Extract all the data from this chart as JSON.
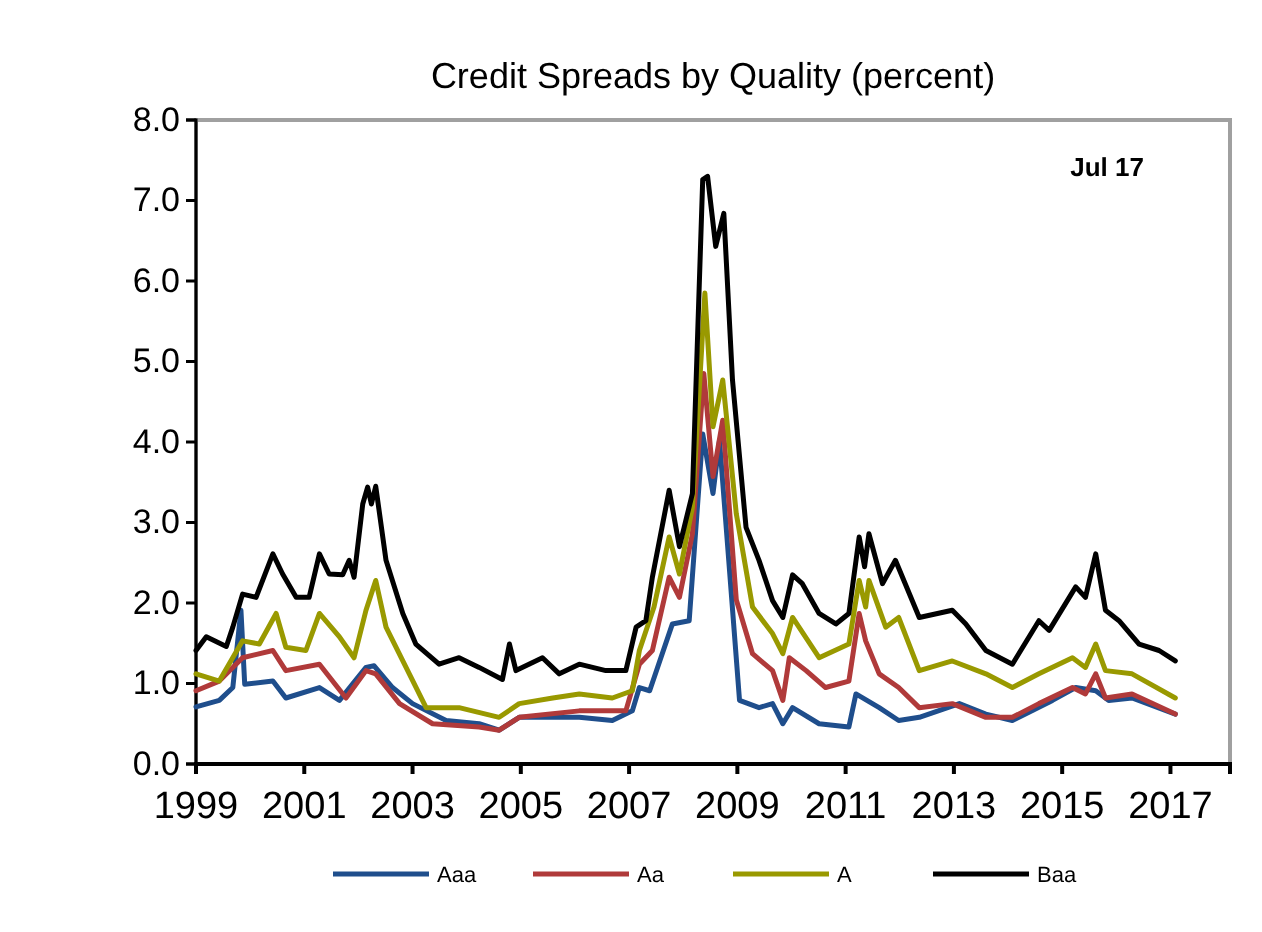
{
  "chart_data": {
    "type": "line",
    "title": "Credit Spreads by Quality (percent)",
    "annotations": [
      "Jul 17"
    ],
    "xlim": [
      1999,
      2018.1
    ],
    "xticks": [
      1999,
      2001,
      2003,
      2005,
      2007,
      2009,
      2011,
      2013,
      2015,
      2017
    ],
    "ylim": [
      0,
      8
    ],
    "yticks": [
      {
        "value": 0,
        "label": "0.0"
      },
      {
        "value": 1,
        "label": "1.0"
      },
      {
        "value": 2,
        "label": "2.0"
      },
      {
        "value": 3,
        "label": "3.0"
      },
      {
        "value": 4,
        "label": "4.0"
      },
      {
        "value": 5,
        "label": "5.0"
      },
      {
        "value": 6,
        "label": "6.0"
      },
      {
        "value": 7,
        "label": "7.0"
      },
      {
        "value": 8,
        "label": "8.0"
      }
    ],
    "grid": false,
    "legend": "bottom",
    "line_style": "solid",
    "marker": "none",
    "series": [
      {
        "name": "Aaa",
        "color": "#1f4e8c",
        "x": [
          1999.0,
          1999.43,
          1999.68,
          1999.83,
          1999.9,
          2000.42,
          2000.66,
          2001.28,
          2001.65,
          2002.14,
          2002.29,
          2002.63,
          2003.0,
          2003.62,
          2004.23,
          2004.6,
          2004.97,
          2005.59,
          2006.08,
          2006.69,
          2007.06,
          2007.19,
          2007.38,
          2007.8,
          2008.11,
          2008.36,
          2008.55,
          2008.67,
          2008.85,
          2009.04,
          2009.4,
          2009.65,
          2009.84,
          2010.02,
          2010.51,
          2011.06,
          2011.19,
          2011.62,
          2011.98,
          2012.36,
          2013.1,
          2013.59,
          2014.08,
          2014.82,
          2015.25,
          2015.62,
          2015.86,
          2016.29,
          2017.09
        ],
        "values": [
          0.71,
          0.79,
          0.95,
          1.91,
          0.99,
          1.03,
          0.82,
          0.95,
          0.79,
          1.2,
          1.22,
          0.95,
          0.75,
          0.54,
          0.5,
          0.42,
          0.58,
          0.58,
          0.58,
          0.54,
          0.66,
          0.95,
          0.91,
          1.74,
          1.78,
          4.1,
          3.36,
          4.02,
          2.45,
          0.79,
          0.7,
          0.75,
          0.5,
          0.7,
          0.5,
          0.46,
          0.87,
          0.7,
          0.54,
          0.58,
          0.75,
          0.62,
          0.54,
          0.79,
          0.95,
          0.91,
          0.79,
          0.82,
          0.62
        ]
      },
      {
        "name": "Aa",
        "color": "#b03a3a",
        "x": [
          1999.0,
          1999.43,
          1999.86,
          2000.42,
          2000.66,
          2001.28,
          2001.77,
          2002.14,
          2002.32,
          2002.76,
          2003.37,
          2004.23,
          2004.6,
          2004.97,
          2006.08,
          2006.94,
          2007.19,
          2007.43,
          2007.74,
          2007.93,
          2008.17,
          2008.38,
          2008.55,
          2008.73,
          2008.98,
          2009.28,
          2009.65,
          2009.84,
          2009.96,
          2010.27,
          2010.63,
          2011.06,
          2011.25,
          2011.37,
          2011.62,
          2011.98,
          2012.36,
          2012.97,
          2013.59,
          2014.08,
          2014.57,
          2015.19,
          2015.43,
          2015.62,
          2015.8,
          2016.29,
          2017.09
        ],
        "values": [
          0.91,
          1.03,
          1.32,
          1.41,
          1.16,
          1.24,
          0.82,
          1.16,
          1.12,
          0.75,
          0.5,
          0.46,
          0.42,
          0.58,
          0.66,
          0.66,
          1.24,
          1.41,
          2.32,
          2.07,
          2.86,
          4.85,
          3.57,
          4.27,
          2.04,
          1.37,
          1.16,
          0.79,
          1.32,
          1.16,
          0.95,
          1.03,
          1.87,
          1.53,
          1.12,
          0.95,
          0.7,
          0.75,
          0.58,
          0.58,
          0.75,
          0.95,
          0.87,
          1.12,
          0.82,
          0.87,
          0.62
        ]
      },
      {
        "name": "A",
        "color": "#999900",
        "x": [
          1999.0,
          1999.43,
          1999.86,
          2000.17,
          2000.48,
          2000.66,
          2001.03,
          2001.28,
          2001.65,
          2001.92,
          2002.14,
          2002.32,
          2002.51,
          2002.94,
          2003.25,
          2003.86,
          2004.6,
          2004.97,
          2005.59,
          2006.08,
          2006.69,
          2007.06,
          2007.19,
          2007.46,
          2007.74,
          2007.93,
          2008.17,
          2008.4,
          2008.55,
          2008.73,
          2008.98,
          2009.28,
          2009.65,
          2009.84,
          2010.02,
          2010.51,
          2011.06,
          2011.25,
          2011.37,
          2011.43,
          2011.74,
          2011.98,
          2012.36,
          2012.97,
          2013.59,
          2014.08,
          2014.57,
          2015.19,
          2015.43,
          2015.62,
          2015.8,
          2016.29,
          2017.09
        ],
        "values": [
          1.12,
          1.03,
          1.53,
          1.49,
          1.87,
          1.45,
          1.41,
          1.87,
          1.58,
          1.32,
          1.91,
          2.28,
          1.7,
          1.12,
          0.7,
          0.7,
          0.58,
          0.75,
          0.82,
          0.87,
          0.82,
          0.91,
          1.41,
          1.95,
          2.82,
          2.36,
          3.19,
          5.85,
          4.19,
          4.77,
          3.11,
          1.95,
          1.62,
          1.37,
          1.82,
          1.32,
          1.49,
          2.28,
          1.95,
          2.28,
          1.7,
          1.82,
          1.16,
          1.28,
          1.12,
          0.95,
          1.12,
          1.32,
          1.2,
          1.49,
          1.16,
          1.12,
          0.82
        ]
      },
      {
        "name": "Baa",
        "color": "#000000",
        "x": [
          1999.0,
          1999.19,
          1999.56,
          1999.68,
          1999.86,
          2000.11,
          2000.42,
          2000.6,
          2000.85,
          2001.09,
          2001.28,
          2001.46,
          2001.71,
          2001.83,
          2001.92,
          2002.08,
          2002.17,
          2002.24,
          2002.32,
          2002.51,
          2002.82,
          2003.06,
          2003.49,
          2003.86,
          2004.23,
          2004.66,
          2004.79,
          2004.91,
          2005.4,
          2005.71,
          2006.08,
          2006.57,
          2006.94,
          2007.13,
          2007.31,
          2007.43,
          2007.74,
          2007.93,
          2008.17,
          2008.36,
          2008.45,
          2008.6,
          2008.75,
          2008.91,
          2009.16,
          2009.4,
          2009.65,
          2009.84,
          2010.02,
          2010.2,
          2010.51,
          2010.82,
          2011.06,
          2011.25,
          2011.35,
          2011.43,
          2011.68,
          2011.92,
          2012.36,
          2012.97,
          2013.22,
          2013.59,
          2014.08,
          2014.57,
          2014.76,
          2015.25,
          2015.43,
          2015.62,
          2015.8,
          2016.05,
          2016.42,
          2016.79,
          2017.09
        ],
        "values": [
          1.41,
          1.58,
          1.46,
          1.7,
          2.11,
          2.07,
          2.61,
          2.36,
          2.07,
          2.07,
          2.61,
          2.36,
          2.35,
          2.53,
          2.32,
          3.23,
          3.44,
          3.23,
          3.45,
          2.53,
          1.87,
          1.49,
          1.24,
          1.32,
          1.2,
          1.05,
          1.49,
          1.16,
          1.32,
          1.12,
          1.24,
          1.16,
          1.16,
          1.7,
          1.78,
          2.32,
          3.4,
          2.7,
          3.36,
          7.26,
          7.3,
          6.43,
          6.84,
          4.77,
          2.94,
          2.53,
          2.03,
          1.82,
          2.35,
          2.24,
          1.87,
          1.74,
          1.87,
          2.82,
          2.45,
          2.86,
          2.24,
          2.53,
          1.82,
          1.91,
          1.74,
          1.41,
          1.24,
          1.78,
          1.66,
          2.2,
          2.07,
          2.61,
          1.91,
          1.78,
          1.49,
          1.41,
          1.28
        ]
      }
    ]
  }
}
